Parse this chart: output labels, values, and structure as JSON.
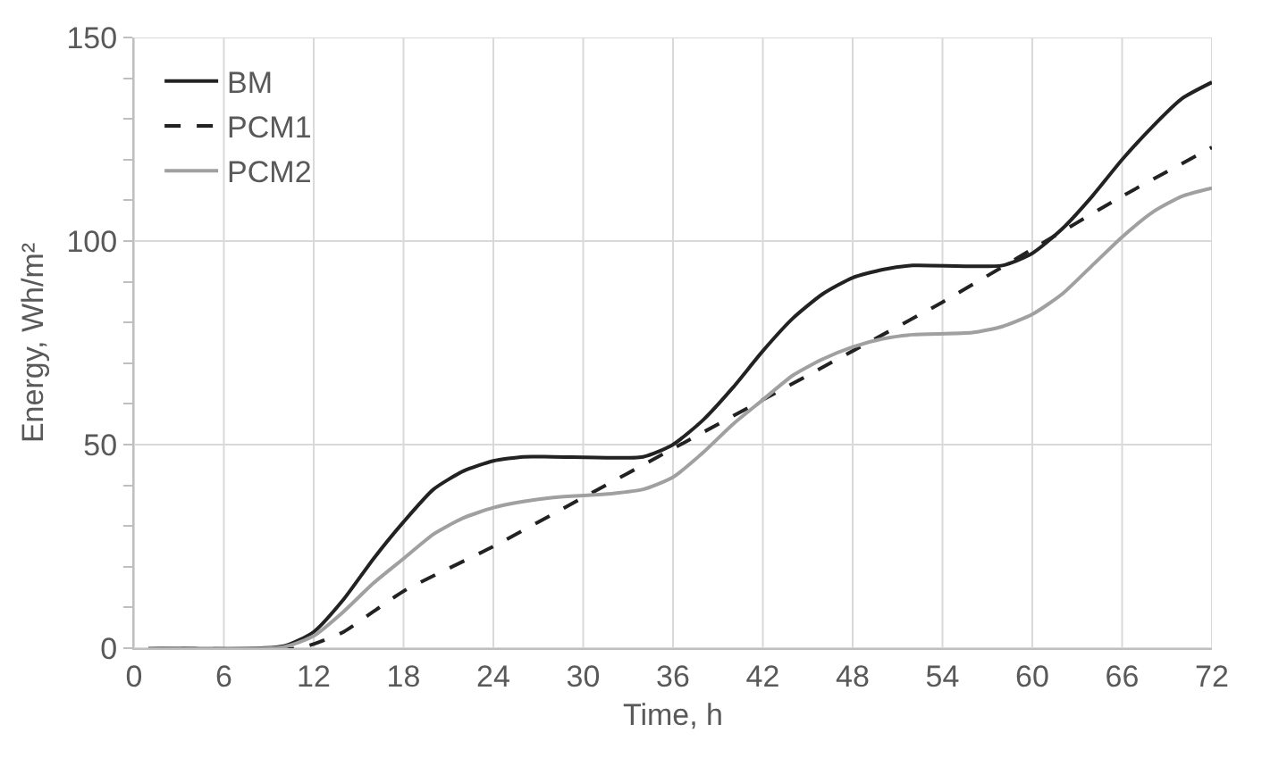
{
  "chart_data": {
    "type": "line",
    "xlabel": "Time, h",
    "ylabel": "Energy, Wh/m²",
    "xlim": [
      0,
      72
    ],
    "xticks": [
      0,
      6,
      12,
      18,
      24,
      30,
      36,
      42,
      48,
      54,
      60,
      66,
      72
    ],
    "ylim": [
      0,
      150
    ],
    "yticks": [
      0,
      {
        "value": 10,
        "label": null
      },
      {
        "value": 20,
        "label": null
      },
      {
        "value": 30,
        "label": null
      },
      {
        "value": 40,
        "label": null
      },
      50,
      {
        "value": 60,
        "label": null
      },
      {
        "value": 70,
        "label": null
      },
      {
        "value": 80,
        "label": null
      },
      {
        "value": 90,
        "label": null
      },
      100,
      {
        "value": 110,
        "label": null
      },
      {
        "value": 120,
        "label": null
      },
      {
        "value": 130,
        "label": null
      },
      {
        "value": 140,
        "label": null
      },
      150
    ],
    "grid": true,
    "legend": "top left",
    "marker": "none",
    "series": [
      {
        "name": "BM",
        "color": "#222222",
        "line_style": "solid",
        "x": [
          1,
          10,
          12,
          14,
          16,
          18,
          20,
          22,
          24,
          26,
          28,
          34,
          36,
          38,
          40,
          42,
          44,
          46,
          48,
          50,
          52,
          58,
          60,
          62,
          64,
          66,
          68,
          70,
          72
        ],
        "values": [
          0,
          0.5,
          4,
          12,
          22,
          31,
          39,
          43.5,
          46,
          47,
          47,
          47,
          50,
          56,
          64,
          73,
          81,
          87,
          91,
          93,
          94,
          94,
          97,
          103,
          111,
          120,
          128,
          135,
          139
        ]
      },
      {
        "name": "PCM1",
        "color": "#222222",
        "line_style": "dashed",
        "x": [
          1,
          11,
          12,
          14,
          16,
          18,
          24,
          30,
          36,
          42,
          48,
          54,
          60,
          66,
          72
        ],
        "values": [
          0,
          0,
          1,
          4,
          9,
          14,
          25,
          37,
          49,
          61,
          73,
          85,
          98,
          111,
          123
        ]
      },
      {
        "name": "PCM2",
        "color": "#a0a0a0",
        "line_style": "solid",
        "x": [
          1,
          10,
          12,
          14,
          16,
          18,
          20,
          22,
          24,
          26,
          28,
          30,
          32,
          34,
          36,
          38,
          40,
          42,
          44,
          46,
          48,
          50,
          52,
          56,
          58,
          60,
          62,
          64,
          66,
          68,
          70,
          72
        ],
        "values": [
          0,
          0.3,
          3,
          9,
          16,
          22,
          28,
          32,
          34.5,
          36,
          37,
          37.5,
          38,
          39,
          42,
          48,
          55,
          61,
          67,
          71,
          74,
          76,
          77,
          77.5,
          79,
          82,
          87,
          94,
          101,
          107,
          111,
          113
        ]
      }
    ]
  }
}
